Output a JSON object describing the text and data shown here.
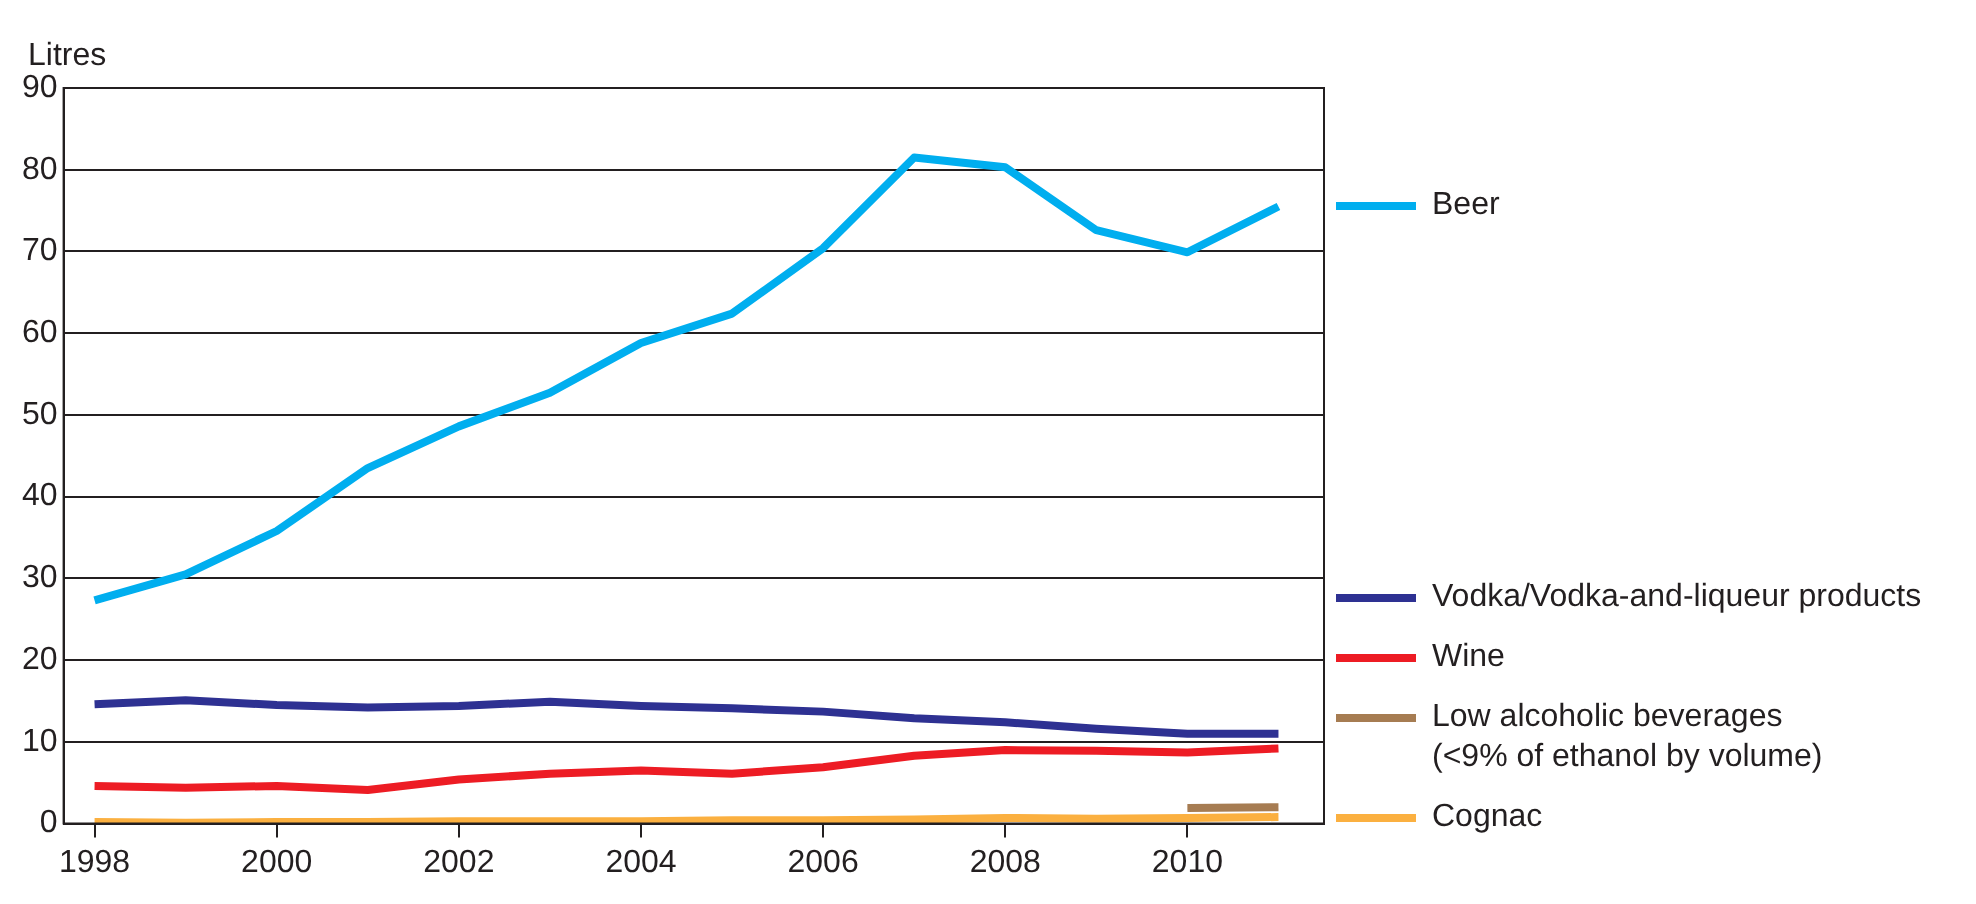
{
  "chart_data": {
    "type": "line",
    "ylabel": "Litres",
    "x": [
      1998,
      1999,
      2000,
      2001,
      2002,
      2003,
      2004,
      2005,
      2006,
      2007,
      2008,
      2009,
      2010,
      2011
    ],
    "xlim": [
      1997.66,
      2011.5
    ],
    "xticks": [
      1998,
      2000,
      2002,
      2004,
      2006,
      2008,
      2010
    ],
    "ylim": [
      0,
      90
    ],
    "yticks": [
      0,
      10,
      20,
      30,
      40,
      50,
      60,
      70,
      80,
      90
    ],
    "grid": "y",
    "legend": "right",
    "marker": "none",
    "line_style": "solid",
    "series": [
      {
        "name": "Beer",
        "color": "#00aeef",
        "values": [
          27.3,
          30.5,
          35.8,
          43.5,
          48.6,
          52.7,
          58.8,
          62.4,
          70.4,
          81.5,
          80.3,
          72.6,
          69.9,
          75.5
        ]
      },
      {
        "name": "Vodka/Vodka-and-liqueur products",
        "color": "#2e3192",
        "values": [
          14.6,
          15.1,
          14.5,
          14.2,
          14.4,
          14.9,
          14.4,
          14.1,
          13.7,
          12.9,
          12.4,
          11.6,
          11.0,
          11.0
        ]
      },
      {
        "name": "Wine",
        "color": "#ed1c24",
        "values": [
          4.6,
          4.4,
          4.6,
          4.1,
          5.4,
          6.1,
          6.5,
          6.1,
          6.9,
          8.3,
          9.0,
          8.9,
          8.7,
          9.2
        ]
      },
      {
        "name": "Low alcoholic beverages\n(<9% of ethanol by volume)",
        "color": "#a67c52",
        "values": [
          null,
          null,
          null,
          null,
          null,
          null,
          null,
          null,
          null,
          null,
          null,
          null,
          1.9,
          2.0
        ]
      },
      {
        "name": "Cognac",
        "color": "#fbb040",
        "values": [
          0.2,
          0.1,
          0.2,
          0.2,
          0.3,
          0.3,
          0.3,
          0.4,
          0.4,
          0.5,
          0.7,
          0.6,
          0.7,
          0.8
        ]
      }
    ]
  }
}
